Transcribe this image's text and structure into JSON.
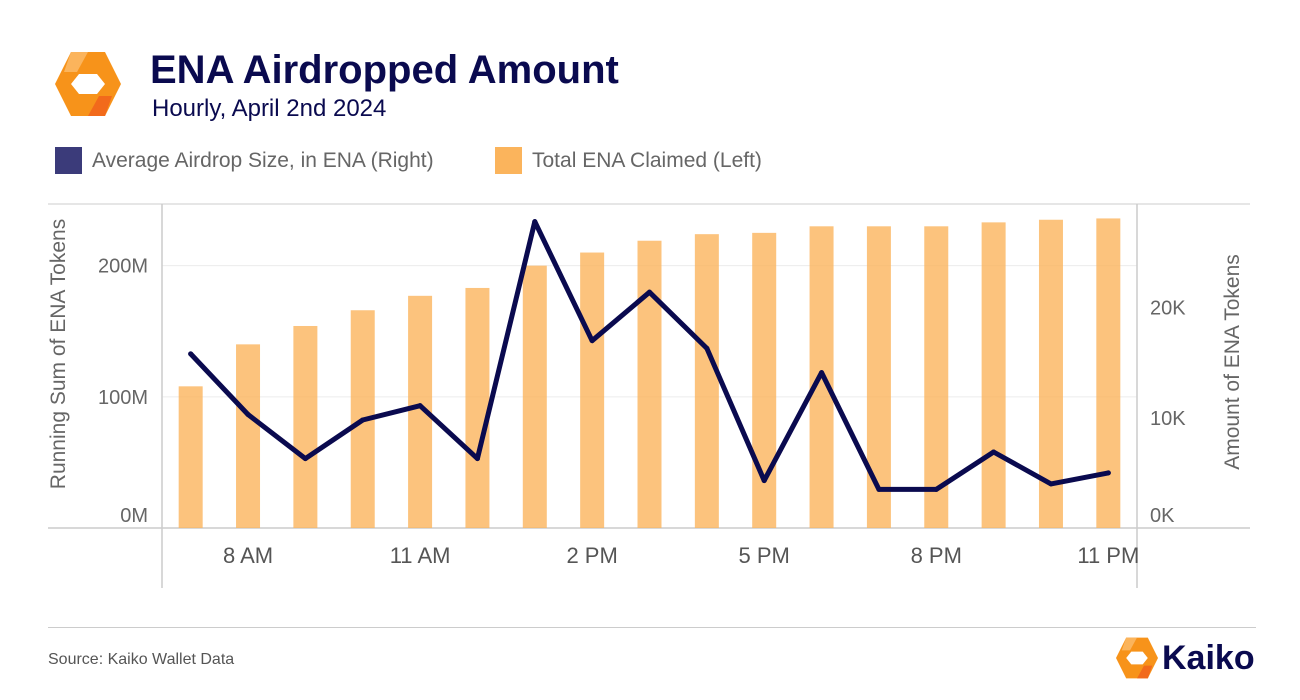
{
  "header": {
    "logo_icon": "kaiko-logo-icon",
    "title": "ENA Airdropped Amount",
    "subtitle": "Hourly, April 2nd 2024"
  },
  "legend": [
    {
      "label": "Average Airdrop Size, in ENA (Right)",
      "color": "#3b3b7a"
    },
    {
      "label": "Total ENA Claimed (Left)",
      "color": "#fbb45c"
    }
  ],
  "chart_data": {
    "type": "bar+line",
    "x": [
      "7 AM",
      "8 AM",
      "9 AM",
      "10 AM",
      "11 AM",
      "12 PM",
      "1 PM",
      "2 PM",
      "3 PM",
      "4 PM",
      "5 PM",
      "6 PM",
      "7 PM",
      "8 PM",
      "9 PM",
      "10 PM",
      "11 PM"
    ],
    "x_tick_labels": [
      "8 AM",
      "11 AM",
      "2 PM",
      "5 PM",
      "8 PM",
      "11 PM"
    ],
    "series": [
      {
        "name": "Total ENA Claimed (Left)",
        "type": "bar",
        "axis": "left",
        "color": "#fbb45c",
        "values": [
          108,
          140,
          154,
          166,
          177,
          183,
          200,
          210,
          219,
          224,
          225,
          230,
          230,
          230,
          233,
          235,
          236
        ]
      },
      {
        "name": "Average Airdrop Size, in ENA (Right)",
        "type": "line",
        "axis": "right",
        "color": "#0a0a4f",
        "values": [
          15800,
          10300,
          6300,
          9800,
          11100,
          6300,
          27800,
          17000,
          21400,
          16300,
          4300,
          14100,
          3500,
          3500,
          6900,
          4000,
          5000
        ]
      }
    ],
    "left_axis": {
      "label": "Running Sum of ENA Tokens",
      "ticks": [
        "0M",
        "100M",
        "200M"
      ],
      "tick_values": [
        0,
        100,
        200
      ],
      "ylim": [
        0,
        247
      ]
    },
    "right_axis": {
      "label": "Amount of ENA Tokens",
      "ticks": [
        "0K",
        "10K",
        "20K"
      ],
      "tick_values": [
        0,
        10000,
        20000
      ],
      "ylim": [
        0,
        29400
      ]
    },
    "grid": true
  },
  "footer": {
    "source": "Source: Kaiko Wallet Data",
    "brand": "Kaiko",
    "brand_icon": "kaiko-logo-icon"
  }
}
